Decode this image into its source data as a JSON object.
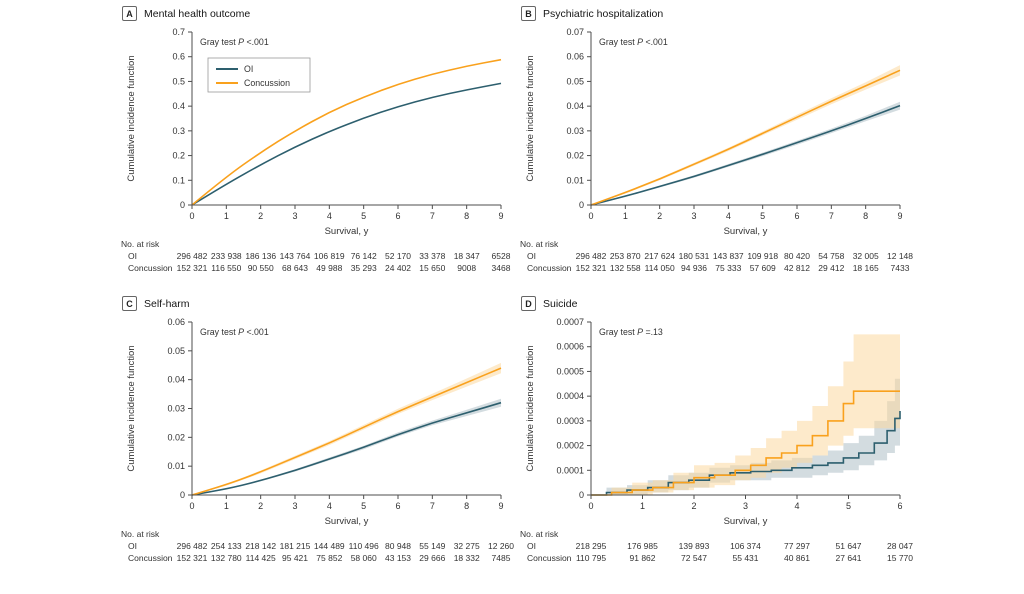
{
  "figure": {
    "risk_title": "No. at risk",
    "colors": {
      "axis": "#4d4d4d",
      "text": "#333333",
      "oi": "#2d5f6e",
      "concussion": "#f9a11d",
      "oi_band": "#aebfc7",
      "concussion_band": "#fbd8a0",
      "legend_border": "#999999"
    }
  },
  "chart_data": [
    {
      "label": "A",
      "title": "Mental health outcome",
      "gray_test": {
        "prefix": "Gray test",
        "p": "P",
        "value": "<.001"
      },
      "ylabel": "Cumulative incidence function",
      "xlabel": "Survival, y",
      "chart": {
        "type": "line",
        "xlim": [
          0,
          9
        ],
        "ylim": [
          0,
          0.7
        ],
        "xticks": [
          0,
          1,
          2,
          3,
          4,
          5,
          6,
          7,
          8,
          9
        ],
        "xtick_labels": [
          "0",
          "1",
          "2",
          "3",
          "4",
          "5",
          "6",
          "7",
          "8",
          "9"
        ],
        "yticks": [
          0,
          0.1,
          0.2,
          0.3,
          0.4,
          0.5,
          0.6,
          0.7
        ],
        "ytick_labels": [
          "0",
          "0.1",
          "0.2",
          "0.3",
          "0.4",
          "0.5",
          "0.6",
          "0.7"
        ],
        "legend": true,
        "series": [
          {
            "name": "OI",
            "color": "#2d5f6e",
            "band_color": "#aebfc7",
            "step": false,
            "x": [
              0,
              1,
              2,
              3,
              4,
              5,
              6,
              7,
              8,
              9
            ],
            "y": [
              0,
              0.085,
              0.163,
              0.235,
              0.298,
              0.352,
              0.398,
              0.436,
              0.466,
              0.492
            ]
          },
          {
            "name": "Concussion",
            "color": "#f9a11d",
            "band_color": "#fbd8a0",
            "step": false,
            "x": [
              0,
              1,
              2,
              3,
              4,
              5,
              6,
              7,
              8,
              9
            ],
            "y": [
              0,
              0.115,
              0.213,
              0.3,
              0.376,
              0.437,
              0.489,
              0.53,
              0.562,
              0.588
            ]
          }
        ]
      },
      "risk_rows": [
        {
          "label": "OI",
          "values": [
            "296 482",
            "233 938",
            "186 136",
            "143 764",
            "106 819",
            "76 142",
            "52 170",
            "33 378",
            "18 347",
            "6528"
          ]
        },
        {
          "label": "Concussion",
          "values": [
            "152 321",
            "116 550",
            "90 550",
            "68 643",
            "49 988",
            "35 293",
            "24 402",
            "15 650",
            "9008",
            "3468"
          ]
        }
      ]
    },
    {
      "label": "B",
      "title": "Psychiatric hospitalization",
      "gray_test": {
        "prefix": "Gray test",
        "p": "P",
        "value": "<.001"
      },
      "ylabel": "Cumulative incidence function",
      "xlabel": "Survival, y",
      "chart": {
        "type": "line",
        "xlim": [
          0,
          9
        ],
        "ylim": [
          0,
          0.07
        ],
        "xticks": [
          0,
          1,
          2,
          3,
          4,
          5,
          6,
          7,
          8,
          9
        ],
        "xtick_labels": [
          "0",
          "1",
          "2",
          "3",
          "4",
          "5",
          "6",
          "7",
          "8",
          "9"
        ],
        "yticks": [
          0,
          0.01,
          0.02,
          0.03,
          0.04,
          0.05,
          0.06,
          0.07
        ],
        "ytick_labels": [
          "0",
          "0.01",
          "0.02",
          "0.03",
          "0.04",
          "0.05",
          "0.06",
          "0.07"
        ],
        "legend": false,
        "series": [
          {
            "name": "OI",
            "color": "#2d5f6e",
            "band_color": "#aebfc7",
            "step": false,
            "x": [
              0,
              1,
              2,
              3,
              4,
              5,
              6,
              7,
              8,
              9
            ],
            "y": [
              0,
              0.0035,
              0.0075,
              0.0115,
              0.016,
              0.0205,
              0.0252,
              0.03,
              0.035,
              0.0402
            ],
            "upper": [
              0,
              0.0038,
              0.0079,
              0.012,
              0.0166,
              0.0212,
              0.026,
              0.0309,
              0.0361,
              0.0418
            ],
            "lower": [
              0,
              0.0032,
              0.0071,
              0.011,
              0.0154,
              0.0198,
              0.0244,
              0.0291,
              0.0339,
              0.0386
            ]
          },
          {
            "name": "Concussion",
            "color": "#f9a11d",
            "band_color": "#fbd8a0",
            "step": false,
            "x": [
              0,
              1,
              2,
              3,
              4,
              5,
              6,
              7,
              8,
              9
            ],
            "y": [
              0,
              0.005,
              0.0105,
              0.0165,
              0.0225,
              0.029,
              0.0355,
              0.042,
              0.0482,
              0.0545
            ],
            "upper": [
              0,
              0.0054,
              0.011,
              0.0171,
              0.0232,
              0.0298,
              0.0365,
              0.0432,
              0.0497,
              0.0566
            ],
            "lower": [
              0,
              0.0046,
              0.01,
              0.0159,
              0.0218,
              0.0282,
              0.0345,
              0.0408,
              0.0467,
              0.0524
            ]
          }
        ]
      },
      "risk_rows": [
        {
          "label": "OI",
          "values": [
            "296 482",
            "253 870",
            "217 624",
            "180 531",
            "143 837",
            "109 918",
            "80 420",
            "54 758",
            "32 005",
            "12 148"
          ]
        },
        {
          "label": "Concussion",
          "values": [
            "152 321",
            "132 558",
            "114 050",
            "94 936",
            "75 333",
            "57 609",
            "42 812",
            "29 412",
            "18 165",
            "7433"
          ]
        }
      ]
    },
    {
      "label": "C",
      "title": "Self-harm",
      "gray_test": {
        "prefix": "Gray test",
        "p": "P",
        "value": "<.001"
      },
      "ylabel": "Cumulative incidence function",
      "xlabel": "Survival, y",
      "chart": {
        "type": "line",
        "xlim": [
          0,
          9
        ],
        "ylim": [
          0,
          0.06
        ],
        "xticks": [
          0,
          1,
          2,
          3,
          4,
          5,
          6,
          7,
          8,
          9
        ],
        "xtick_labels": [
          "0",
          "1",
          "2",
          "3",
          "4",
          "5",
          "6",
          "7",
          "8",
          "9"
        ],
        "yticks": [
          0,
          0.01,
          0.02,
          0.03,
          0.04,
          0.05,
          0.06
        ],
        "ytick_labels": [
          "0",
          "0.01",
          "0.02",
          "0.03",
          "0.04",
          "0.05",
          "0.06"
        ],
        "legend": false,
        "series": [
          {
            "name": "OI",
            "color": "#2d5f6e",
            "band_color": "#aebfc7",
            "step": false,
            "x": [
              0,
              1,
              2,
              3,
              4,
              5,
              6,
              7,
              8,
              9
            ],
            "y": [
              0,
              0.002,
              0.005,
              0.0085,
              0.0125,
              0.0165,
              0.021,
              0.025,
              0.0285,
              0.032
            ],
            "upper": [
              0,
              0.0022,
              0.0053,
              0.0089,
              0.013,
              0.0171,
              0.0217,
              0.0258,
              0.0296,
              0.0334
            ],
            "lower": [
              0,
              0.0018,
              0.0047,
              0.0081,
              0.012,
              0.0159,
              0.0203,
              0.0242,
              0.0274,
              0.0306
            ]
          },
          {
            "name": "Concussion",
            "color": "#f9a11d",
            "band_color": "#fbd8a0",
            "step": false,
            "x": [
              0,
              1,
              2,
              3,
              4,
              5,
              6,
              7,
              8,
              9
            ],
            "y": [
              0,
              0.0035,
              0.008,
              0.013,
              0.018,
              0.0235,
              0.029,
              0.034,
              0.039,
              0.044
            ],
            "upper": [
              0,
              0.0038,
              0.0085,
              0.0136,
              0.0187,
              0.0243,
              0.0299,
              0.0351,
              0.0404,
              0.0458
            ],
            "lower": [
              0,
              0.0032,
              0.0075,
              0.0124,
              0.0173,
              0.0227,
              0.0281,
              0.0329,
              0.0376,
              0.0422
            ]
          }
        ]
      },
      "risk_rows": [
        {
          "label": "OI",
          "values": [
            "296 482",
            "254 133",
            "218 142",
            "181 215",
            "144 489",
            "110 496",
            "80 948",
            "55 149",
            "32 275",
            "12 260"
          ]
        },
        {
          "label": "Concussion",
          "values": [
            "152 321",
            "132 780",
            "114 425",
            "95 421",
            "75 852",
            "58 060",
            "43 153",
            "29 666",
            "18 332",
            "7485"
          ]
        }
      ]
    },
    {
      "label": "D",
      "title": "Suicide",
      "gray_test": {
        "prefix": "Gray test",
        "p": "P",
        "value": "=.13"
      },
      "ylabel": "Cumulative incidence function",
      "xlabel": "Survival, y",
      "chart": {
        "type": "line",
        "xlim": [
          0,
          6
        ],
        "ylim": [
          0,
          0.0007
        ],
        "xticks": [
          0,
          1,
          2,
          3,
          4,
          5,
          6
        ],
        "xtick_labels": [
          "0",
          "1",
          "2",
          "3",
          "4",
          "5",
          "6"
        ],
        "yticks": [
          0,
          0.0001,
          0.0002,
          0.0003,
          0.0004,
          0.0005,
          0.0006,
          0.0007
        ],
        "ytick_labels": [
          "0",
          "0.0001",
          "0.0002",
          "0.0003",
          "0.0004",
          "0.0005",
          "0.0006",
          "0.0007"
        ],
        "legend": false,
        "series": [
          {
            "name": "OI",
            "color": "#2d5f6e",
            "band_color": "#aebfc7",
            "step": true,
            "x": [
              0,
              0.3,
              0.7,
              1.1,
              1.5,
              1.9,
              2.3,
              2.7,
              3.1,
              3.5,
              3.9,
              4.3,
              4.6,
              4.9,
              5.2,
              5.5,
              5.75,
              5.9,
              6
            ],
            "y": [
              0,
              1e-05,
              2e-05,
              3e-05,
              5e-05,
              6e-05,
              8e-05,
              9e-05,
              9.5e-05,
              0.0001,
              0.00011,
              0.00012,
              0.00013,
              0.00015,
              0.00017,
              0.00021,
              0.00026,
              0.00031,
              0.00034
            ],
            "upper": [
              0,
              3e-05,
              4e-05,
              6e-05,
              8e-05,
              9e-05,
              0.00011,
              0.00012,
              0.00013,
              0.00014,
              0.00015,
              0.00016,
              0.00018,
              0.00021,
              0.00024,
              0.0003,
              0.00038,
              0.00047,
              0.00052
            ],
            "lower": [
              0,
              0,
              0,
              1e-05,
              2e-05,
              3e-05,
              5e-05,
              6e-05,
              6e-05,
              7e-05,
              7e-05,
              8e-05,
              9e-05,
              0.0001,
              0.00012,
              0.00014,
              0.00017,
              0.0002,
              0.00022
            ]
          },
          {
            "name": "Concussion",
            "color": "#f9a11d",
            "band_color": "#fbd8a0",
            "step": true,
            "x": [
              0,
              0.4,
              0.8,
              1.2,
              1.6,
              2.0,
              2.4,
              2.8,
              3.1,
              3.4,
              3.7,
              4.0,
              4.3,
              4.6,
              4.9,
              5.1,
              6.0
            ],
            "y": [
              0,
              1e-05,
              2e-05,
              3e-05,
              5e-05,
              7e-05,
              8e-05,
              0.0001,
              0.00012,
              0.00015,
              0.00017,
              0.0002,
              0.00024,
              0.0003,
              0.00037,
              0.00042,
              0.00042
            ],
            "upper": [
              0,
              3e-05,
              5e-05,
              6e-05,
              9e-05,
              0.00012,
              0.00013,
              0.00016,
              0.00019,
              0.00023,
              0.00026,
              0.0003,
              0.00036,
              0.00044,
              0.00054,
              0.00065,
              0.00065
            ],
            "lower": [
              0,
              0,
              0,
              1e-05,
              2e-05,
              3e-05,
              4e-05,
              6e-05,
              7e-05,
              9e-05,
              0.00011,
              0.00013,
              0.00016,
              0.0002,
              0.00024,
              0.00027,
              0.00027
            ]
          }
        ]
      },
      "risk_rows": [
        {
          "label": "OI",
          "values": [
            "218 295",
            "176 985",
            "139 893",
            "106 374",
            "77 297",
            "51 647",
            "28 047"
          ]
        },
        {
          "label": "Concussion",
          "values": [
            "110 795",
            "91 862",
            "72 547",
            "55 431",
            "40 861",
            "27 641",
            "15 770"
          ]
        }
      ]
    }
  ]
}
